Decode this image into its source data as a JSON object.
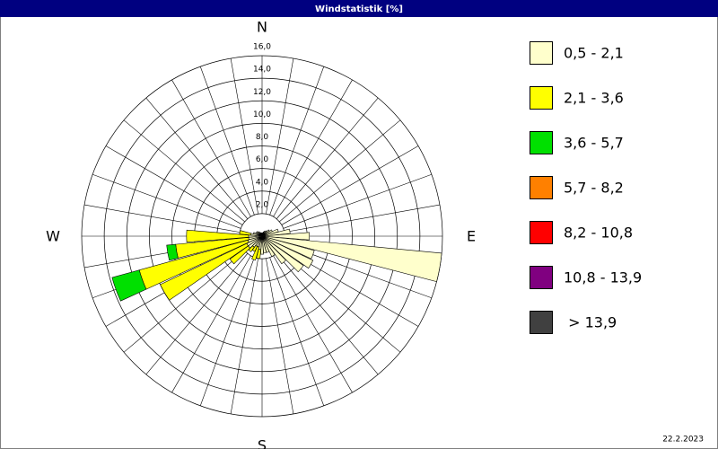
{
  "chart_data": {
    "type": "windrose",
    "title": "Windstatistik [%]",
    "categories": [
      "N",
      null,
      null,
      null,
      null,
      null,
      null,
      null,
      null,
      "E",
      null,
      null,
      null,
      null,
      null,
      null,
      null,
      null,
      "S",
      null,
      null,
      null,
      null,
      null,
      null,
      null,
      null,
      "W",
      null,
      null,
      null,
      null,
      null,
      null,
      null,
      null
    ],
    "series": [
      {
        "name": "0,5 - 2,1",
        "color": "#ffffcc",
        "values": [
          0.3,
          0.3,
          0.4,
          0.5,
          0.6,
          0.8,
          1.0,
          1.5,
          2.5,
          4.2,
          16,
          4.8,
          5.0,
          4.5,
          3.0,
          2.0,
          1.5,
          1.5,
          1.6,
          1.2,
          1.0,
          1.0,
          1.2,
          1.5,
          1.5,
          1.3,
          1.2,
          1.2,
          1.0,
          0.8,
          0.6,
          0.6,
          0.5,
          0.4,
          0.3,
          0.3
        ]
      },
      {
        "name": "2,1 - 3,6",
        "color": "#ffff00",
        "values": [
          0,
          0,
          0,
          0,
          0,
          0,
          0,
          0,
          0,
          0,
          0,
          0,
          0,
          0,
          0,
          0,
          0,
          0,
          0,
          0.8,
          1.2,
          0.5,
          0.5,
          2.0,
          8.5,
          10.0,
          6.5,
          5.5,
          1.0,
          0,
          0,
          0,
          0,
          0,
          0,
          0
        ]
      },
      {
        "name": "3,6 - 5,7",
        "color": "#00e000",
        "values": [
          0,
          0,
          0,
          0,
          0,
          0,
          0,
          0,
          0,
          0,
          0,
          0,
          0,
          0,
          0,
          0,
          0,
          0,
          0,
          0,
          0,
          0,
          0,
          0,
          0,
          2.5,
          0.8,
          0,
          0,
          0,
          0,
          0,
          0,
          0,
          0,
          0
        ]
      },
      {
        "name": "5,7 - 8,2",
        "color": "#ff8000",
        "values": [
          0,
          0,
          0,
          0,
          0,
          0,
          0,
          0,
          0,
          0,
          0,
          0,
          0,
          0,
          0,
          0,
          0,
          0,
          0,
          0,
          0,
          0,
          0,
          0,
          0,
          0,
          0,
          0,
          0,
          0,
          0,
          0,
          0,
          0,
          0,
          0
        ]
      },
      {
        "name": "8,2 - 10,8",
        "color": "#ff0000",
        "values": [
          0,
          0,
          0,
          0,
          0,
          0,
          0,
          0,
          0,
          0,
          0,
          0,
          0,
          0,
          0,
          0,
          0,
          0,
          0,
          0,
          0,
          0,
          0,
          0,
          0,
          0,
          0,
          0,
          0,
          0,
          0,
          0,
          0,
          0,
          0,
          0
        ]
      },
      {
        "name": "10,8 - 13,9",
        "color": "#800080",
        "values": [
          0,
          0,
          0,
          0,
          0,
          0,
          0,
          0,
          0,
          0,
          0,
          0,
          0,
          0,
          0,
          0,
          0,
          0,
          0,
          0,
          0,
          0,
          0,
          0,
          0,
          0,
          0,
          0,
          0,
          0,
          0,
          0,
          0,
          0,
          0,
          0
        ]
      },
      {
        "name": " > 13,9",
        "color": "#404040",
        "values": [
          0,
          0,
          0,
          0,
          0,
          0,
          0,
          0,
          0,
          0,
          0,
          0,
          0,
          0,
          0,
          0,
          0,
          0,
          0,
          0,
          0,
          0,
          0,
          0,
          0,
          0,
          0,
          0,
          0,
          0,
          0,
          0,
          0,
          0,
          0,
          0
        ]
      }
    ],
    "rlim": [
      0,
      16
    ],
    "rticks": [
      {
        "value": 2,
        "label": "2,0"
      },
      {
        "value": 4,
        "label": "4,0"
      },
      {
        "value": 6,
        "label": "6,0"
      },
      {
        "value": 8,
        "label": "8,0"
      },
      {
        "value": 10,
        "label": "10,0"
      },
      {
        "value": 12,
        "label": "12,0"
      },
      {
        "value": 14,
        "label": "14,0"
      },
      {
        "value": 16,
        "label": "16,0"
      }
    ],
    "date": "22.2.2023"
  }
}
